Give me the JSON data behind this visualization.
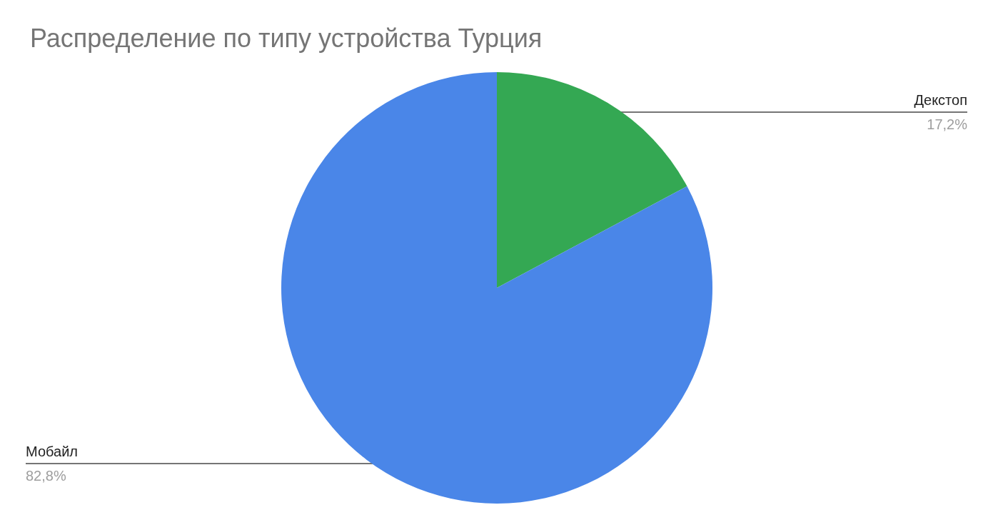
{
  "chart_data": {
    "type": "pie",
    "title": "Распределение по типу устройства Турция",
    "categories": [
      "Декстоп",
      "Мобайл"
    ],
    "values": [
      17.2,
      82.8
    ],
    "colors": [
      "#34a853",
      "#4a86e8"
    ],
    "value_labels": [
      "17,2%",
      "82,8%"
    ],
    "legend": false
  }
}
